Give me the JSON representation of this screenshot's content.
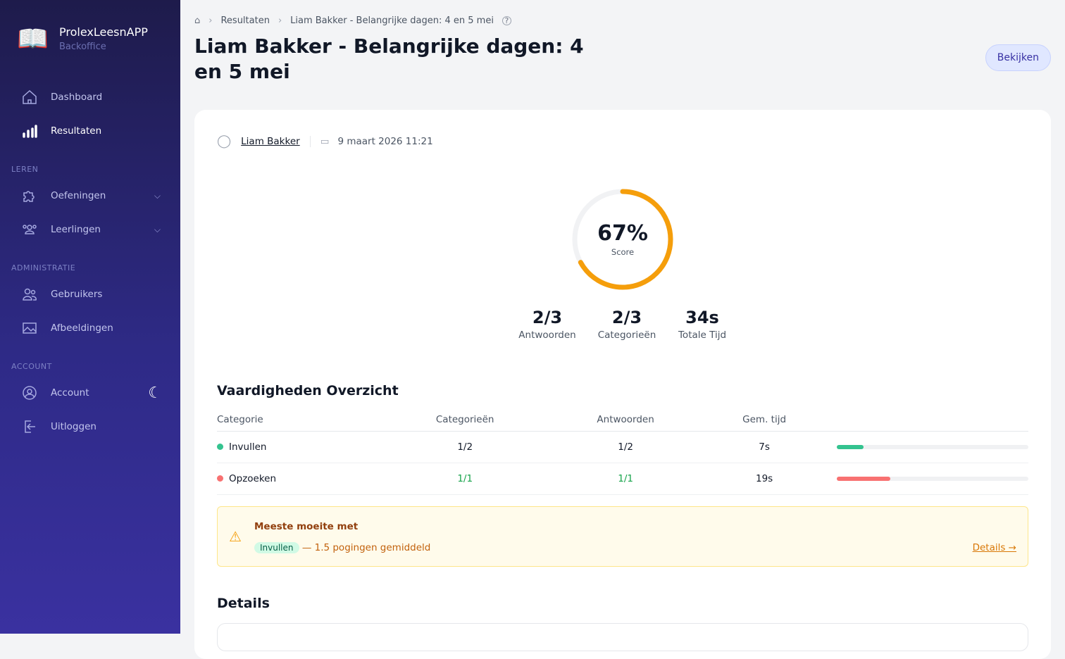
{
  "app": {
    "title": "ProlexLeesnAPP",
    "subtitle": "Backoffice"
  },
  "sidebar": {
    "items": [
      {
        "label": "Dashboard"
      },
      {
        "label": "Resultaten"
      },
      {
        "label": "Oefeningen"
      },
      {
        "label": "Leerlingen"
      },
      {
        "label": "Gebruikers"
      },
      {
        "label": "Afbeeldingen"
      },
      {
        "label": "Account"
      },
      {
        "label": "Uitloggen"
      }
    ],
    "sections": [
      "LEREN",
      "ADMINISTRATIE",
      "ACCOUNT"
    ]
  },
  "breadcrumb": [
    "Resultaten",
    "Liam Bakker - Belangrijke dagen: 4 en 5 mei"
  ],
  "page_title": "Liam Bakker - Belangrijke dagen: 4 en 5 mei",
  "view_button": "Bekijken",
  "meta": {
    "student": "Liam Bakker",
    "date": "9 maart 2026 11:21"
  },
  "score": {
    "value": "67%",
    "label": "Score",
    "percent": 67,
    "color": "#f59e0b"
  },
  "stats": [
    {
      "value": "2/3",
      "label": "Antwoorden"
    },
    {
      "value": "2/3",
      "label": "Categorieën"
    },
    {
      "value": "34s",
      "label": "Totale Tijd"
    }
  ],
  "skills": {
    "title": "Vaardigheden Overzicht",
    "headers": [
      "Categorie",
      "Categorieën",
      "Antwoorden",
      "Gem. tijd"
    ],
    "rows": [
      {
        "name": "Invullen",
        "cat": "1/2",
        "ans": "1/2",
        "time": "7s",
        "color": "#34c38f",
        "fill": 14
      },
      {
        "name": "Opzoeken",
        "cat": "1/1",
        "ans": "1/1",
        "time": "19s",
        "color": "#f87171",
        "fill": 28
      }
    ]
  },
  "alert": {
    "title": "Meeste moeite met",
    "badge": "Invullen",
    "text": "— 1.5 pogingen gemiddeld",
    "link": "Details →"
  },
  "details_title": "Details"
}
